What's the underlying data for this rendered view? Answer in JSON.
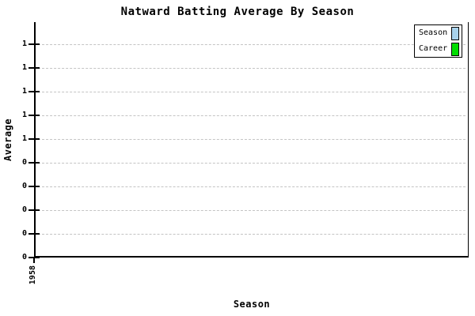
{
  "chart_data": {
    "type": "line",
    "title": "Natward Batting Average By Season",
    "xlabel": "Season",
    "ylabel": "Average",
    "x_tick_labels": [
      "1958"
    ],
    "y_tick_labels": [
      "1",
      "1",
      "1",
      "1",
      "1",
      "0",
      "0",
      "0",
      "0",
      "0"
    ],
    "grid": "horizontal-dashed",
    "legend_position": "top-right",
    "legend": {
      "items": [
        {
          "label": "Season",
          "color": "#a8d2ec"
        },
        {
          "label": "Career",
          "color": "#00dd00"
        }
      ]
    },
    "series": [
      {
        "name": "Season",
        "color": "#a8d2ec",
        "values": []
      },
      {
        "name": "Career",
        "color": "#00dd00",
        "values": []
      }
    ]
  },
  "colors": {
    "background": "#ffffff",
    "axis": "#000000",
    "grid": "#c4c4c4",
    "legend_border": "#000000"
  }
}
